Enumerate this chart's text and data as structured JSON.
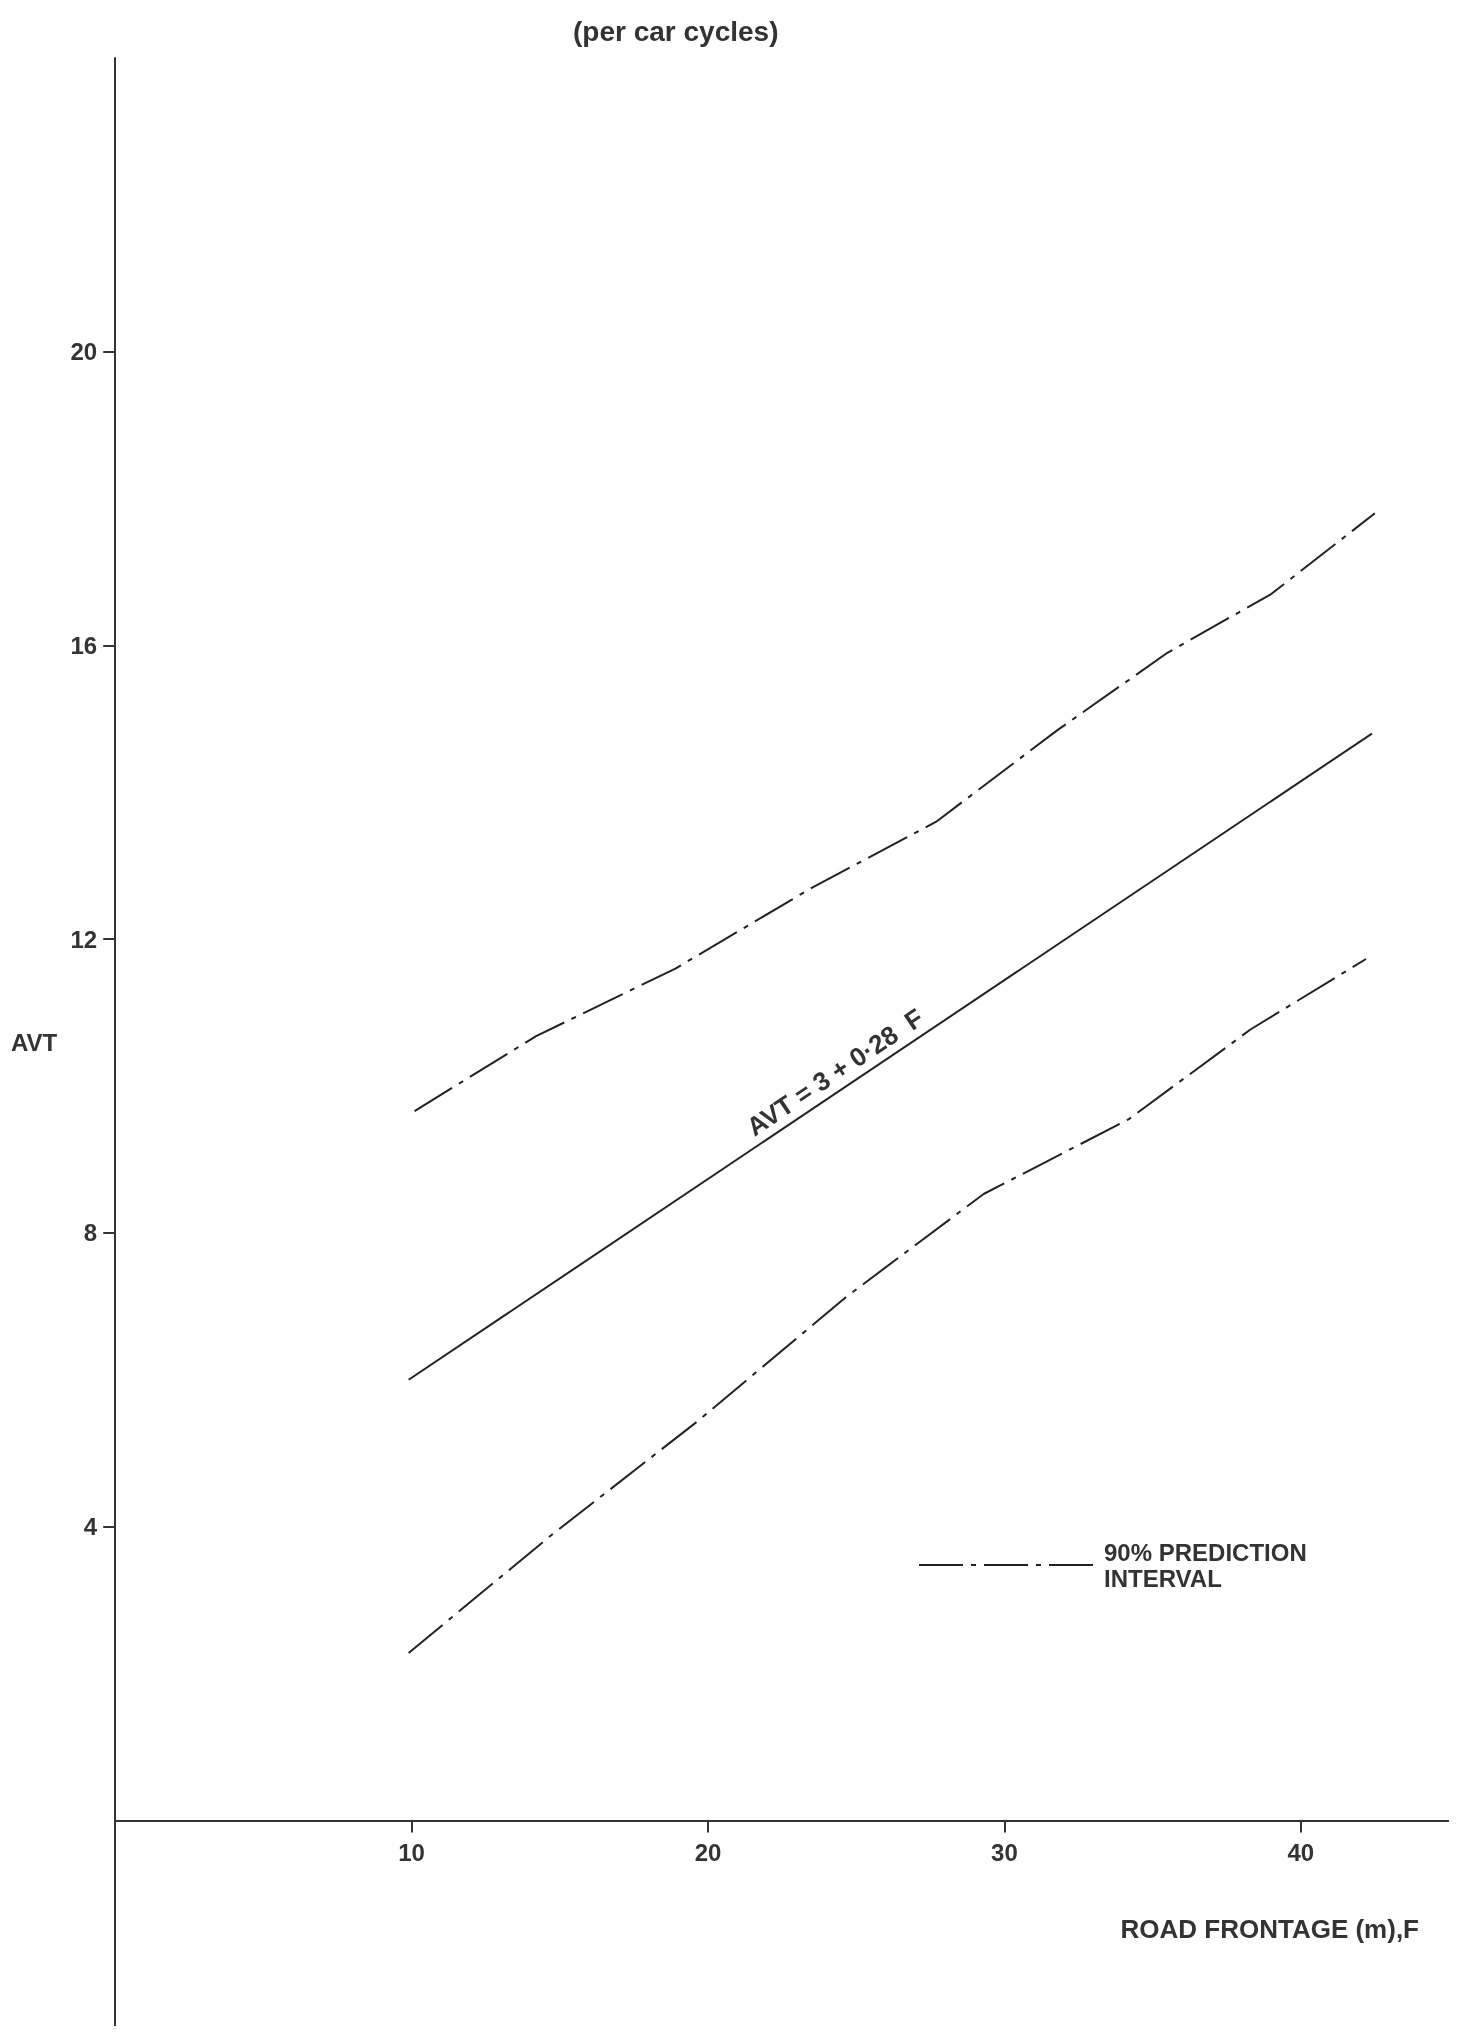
{
  "chart_data": {
    "type": "line",
    "title": "(per car cycles)",
    "xlabel": "ROAD FRONTAGE (m),F",
    "ylabel": "AVT",
    "xlim": [
      0,
      45
    ],
    "xticks": [
      10,
      20,
      30,
      40
    ],
    "ylim": [
      -2.8,
      24
    ],
    "yticks": [
      4,
      8,
      12,
      16,
      20
    ],
    "grid": false,
    "legend": "bottom right",
    "marker": "none",
    "annotations": [
      "AVT = 3 + 0·28  F"
    ],
    "series": [
      {
        "color": "#222222",
        "line_style": "solid",
        "x": [
          9.9,
          42.4
        ],
        "values": [
          6.0,
          14.8
        ]
      },
      {
        "name": "90% PREDICTION INTERVAL",
        "color": "#222222",
        "line_style": "dashed",
        "x": [
          10.1,
          14.2,
          18.9,
          23.5,
          27.7,
          31.8,
          35.5,
          39.0,
          42.5
        ],
        "values": [
          9.66,
          10.68,
          11.6,
          12.7,
          13.6,
          14.85,
          15.9,
          16.7,
          17.8
        ]
      },
      {
        "color": "#222222",
        "line_style": "dashed",
        "x": [
          9.9,
          14.7,
          19.6,
          24.7,
          29.3,
          34.2,
          38.3,
          42.2
        ],
        "values": [
          2.28,
          3.88,
          5.42,
          7.14,
          8.53,
          9.55,
          10.77,
          11.73
        ]
      }
    ]
  }
}
